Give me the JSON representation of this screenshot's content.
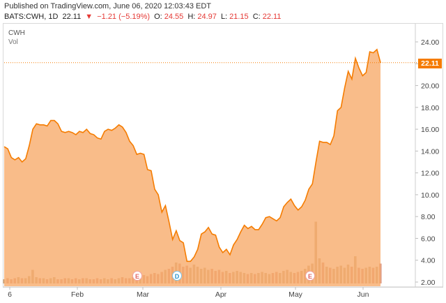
{
  "publisher": "Published on TradingView.com, June 06, 2020 12:03:43 EDT",
  "header": {
    "symbol": "BATS:CWH, 1D",
    "last": "22.11",
    "down_arrow": "▼",
    "change": "−1.21 (−5.19%)",
    "o_label": "O:",
    "o_value": "24.55",
    "h_label": "H:",
    "h_value": "24.97",
    "l_label": "L:",
    "l_value": "21.15",
    "c_label": "C:",
    "c_value": "22.11"
  },
  "legend": {
    "symbol": "CWH",
    "volume": "Vol"
  },
  "price_label": "22.11",
  "markers": [
    {
      "label": "E",
      "kind": "earnings"
    },
    {
      "label": "D",
      "kind": "dividend"
    },
    {
      "label": "E",
      "kind": "earnings"
    }
  ],
  "colors": {
    "area": "#f7a968",
    "line": "#f57c00",
    "volume": "#c9a27a",
    "badge": "#f57c00"
  },
  "chart_data": {
    "type": "area",
    "y_axis": {
      "ticks": [
        "24.00",
        "22.00",
        "20.00",
        "18.00",
        "16.00",
        "14.00",
        "12.00",
        "10.00",
        "8.00",
        "6.00",
        "4.00",
        "2.00"
      ],
      "range": [
        2,
        24.6
      ]
    },
    "x_axis": {
      "ticks": [
        "6",
        "Feb",
        "Mar",
        "Apr",
        "May",
        "Jun"
      ]
    },
    "series": [
      {
        "values": [
          14.4,
          14.2,
          13.4,
          13.2,
          13.4,
          13.0,
          13.3,
          14.5,
          16.0,
          16.5,
          16.4,
          16.4,
          16.3,
          16.8,
          16.8,
          16.5,
          15.8,
          15.7,
          15.8,
          15.7,
          15.5,
          15.8,
          15.7,
          16.0,
          15.6,
          15.5,
          15.2,
          15.1,
          15.8,
          16.0,
          15.9,
          16.1,
          16.4,
          16.2,
          15.7,
          14.9,
          14.5,
          13.7,
          13.8,
          13.7,
          12.3,
          12.2,
          10.5,
          10.0,
          8.4,
          9.0,
          7.5,
          5.9,
          6.7,
          5.8,
          5.6,
          3.9,
          3.9,
          4.3,
          5.0,
          6.4,
          6.6,
          7.0,
          6.4,
          6.3,
          5.2,
          4.7,
          5.0,
          4.5,
          5.4,
          5.9,
          6.6,
          7.2,
          6.9,
          7.1,
          6.8,
          6.8,
          7.3,
          7.9,
          8.0,
          7.8,
          7.6,
          7.9,
          8.9,
          9.3,
          9.6,
          9.0,
          8.6,
          8.9,
          9.5,
          10.5,
          11.0,
          13.0,
          14.9,
          14.8,
          14.8,
          14.6,
          15.4,
          17.7,
          18.0,
          19.8,
          21.3,
          20.6,
          22.5,
          21.6,
          20.9,
          21.2,
          23.1,
          23.0,
          23.3,
          22.1
        ]
      }
    ],
    "volume": [
      0.4,
      0.5,
      0.4,
      0.5,
      0.6,
      0.5,
      0.5,
      0.7,
      1.3,
      0.6,
      0.5,
      0.5,
      0.4,
      0.5,
      0.6,
      0.4,
      0.4,
      0.5,
      0.5,
      0.4,
      0.5,
      0.4,
      0.5,
      0.5,
      0.4,
      0.4,
      0.5,
      0.4,
      0.5,
      0.4,
      0.5,
      0.4,
      0.5,
      0.6,
      0.5,
      0.5,
      0.6,
      0.7,
      0.6,
      0.8,
      0.7,
      0.9,
      1.0,
      0.9,
      1.1,
      1.3,
      1.4,
      1.6,
      2.0,
      1.9,
      1.6,
      1.7,
      1.5,
      1.8,
      1.6,
      1.4,
      1.5,
      1.3,
      1.4,
      1.2,
      1.3,
      1.1,
      1.2,
      1.0,
      1.1,
      1.2,
      1.1,
      1.0,
      0.9,
      1.0,
      0.9,
      1.0,
      1.1,
      1.0,
      0.9,
      1.0,
      1.1,
      1.0,
      1.2,
      1.3,
      1.1,
      1.0,
      1.1,
      1.2,
      1.4,
      1.7,
      1.9,
      5.9,
      2.4,
      2.0,
      1.6,
      1.5,
      1.4,
      1.6,
      1.7,
      1.5,
      1.8,
      1.6,
      2.6,
      1.5,
      1.4,
      1.5,
      1.6,
      1.5,
      1.6,
      1.9
    ]
  }
}
